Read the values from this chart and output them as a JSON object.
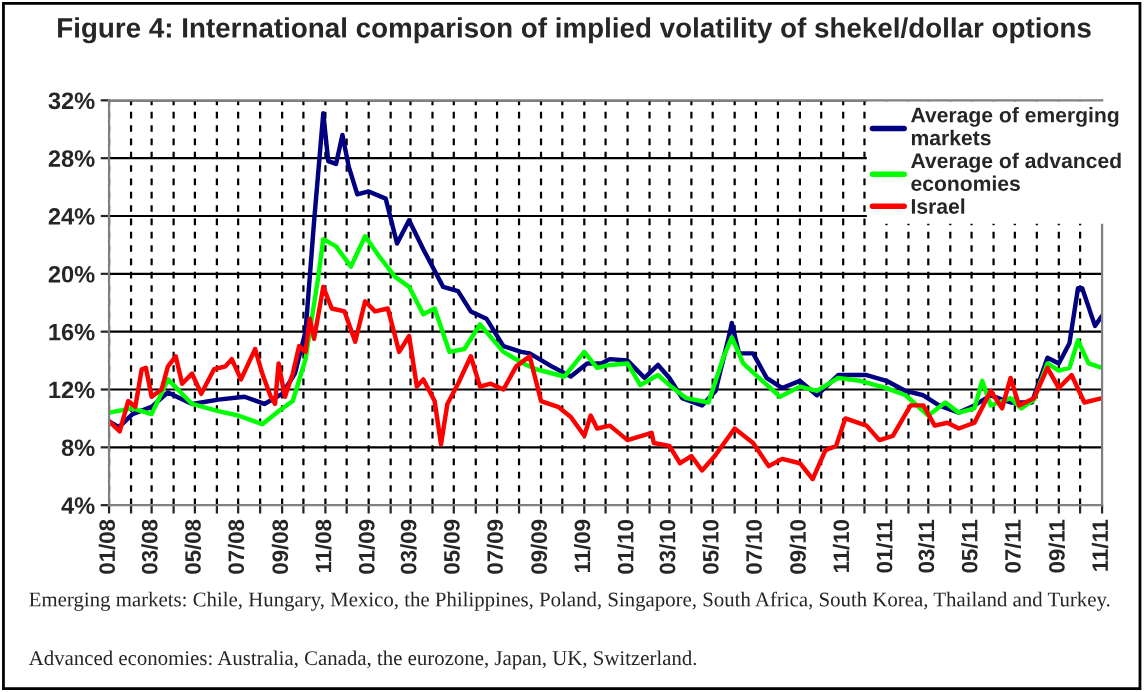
{
  "chart_data": {
    "type": "line",
    "title": "Figure 4: International comparison of implied volatility of shekel/dollar options",
    "ylim": [
      4,
      32
    ],
    "yticks": [
      {
        "value": 4,
        "label": "4%"
      },
      {
        "value": 8,
        "label": "8%"
      },
      {
        "value": 12,
        "label": "12%"
      },
      {
        "value": 16,
        "label": "16%"
      },
      {
        "value": 20,
        "label": "20%"
      },
      {
        "value": 24,
        "label": "24%"
      },
      {
        "value": 28,
        "label": "28%"
      },
      {
        "value": 32,
        "label": "32%"
      }
    ],
    "xlim": [
      "2008-01",
      "2011-11"
    ],
    "xticks": [
      {
        "value": "2008-01",
        "label": "01/08"
      },
      {
        "value": "2008-02",
        "label": null
      },
      {
        "value": "2008-03",
        "label": "03/08"
      },
      {
        "value": "2008-04",
        "label": null
      },
      {
        "value": "2008-05",
        "label": "05/08"
      },
      {
        "value": "2008-06",
        "label": null
      },
      {
        "value": "2008-07",
        "label": "07/08"
      },
      {
        "value": "2008-08",
        "label": null
      },
      {
        "value": "2008-09",
        "label": "09/08"
      },
      {
        "value": "2008-10",
        "label": null
      },
      {
        "value": "2008-11",
        "label": "11/08"
      },
      {
        "value": "2008-12",
        "label": null
      },
      {
        "value": "2009-01",
        "label": "01/09"
      },
      {
        "value": "2009-02",
        "label": null
      },
      {
        "value": "2009-03",
        "label": "03/09"
      },
      {
        "value": "2009-04",
        "label": null
      },
      {
        "value": "2009-05",
        "label": "05/09"
      },
      {
        "value": "2009-06",
        "label": null
      },
      {
        "value": "2009-07",
        "label": "07/09"
      },
      {
        "value": "2009-08",
        "label": null
      },
      {
        "value": "2009-09",
        "label": "09/09"
      },
      {
        "value": "2009-10",
        "label": null
      },
      {
        "value": "2009-11",
        "label": "11/09"
      },
      {
        "value": "2009-12",
        "label": null
      },
      {
        "value": "2010-01",
        "label": "01/10"
      },
      {
        "value": "2010-02",
        "label": null
      },
      {
        "value": "2010-03",
        "label": "03/10"
      },
      {
        "value": "2010-04",
        "label": null
      },
      {
        "value": "2010-05",
        "label": "05/10"
      },
      {
        "value": "2010-06",
        "label": null
      },
      {
        "value": "2010-07",
        "label": "07/10"
      },
      {
        "value": "2010-08",
        "label": null
      },
      {
        "value": "2010-09",
        "label": "09/10"
      },
      {
        "value": "2010-10",
        "label": null
      },
      {
        "value": "2010-11",
        "label": "11/10"
      },
      {
        "value": "2010-12",
        "label": null
      },
      {
        "value": "2011-01",
        "label": "01/11"
      },
      {
        "value": "2011-02",
        "label": null
      },
      {
        "value": "2011-03",
        "label": "03/11"
      },
      {
        "value": "2011-04",
        "label": null
      },
      {
        "value": "2011-05",
        "label": "05/11"
      },
      {
        "value": "2011-06",
        "label": null
      },
      {
        "value": "2011-07",
        "label": "07/11"
      },
      {
        "value": "2011-08",
        "label": null
      },
      {
        "value": "2011-09",
        "label": "09/11"
      },
      {
        "value": "2011-10",
        "label": null
      },
      {
        "value": "2011-11",
        "label": "11/11"
      }
    ],
    "grid": true,
    "legend": "top right",
    "marker": "none",
    "line_style": "solid",
    "series": [
      {
        "name": "Average of emerging markets",
        "color": "#000080",
        "x": [
          "2008-01-01",
          "2008-01-15",
          "2008-02-03",
          "2008-03-01",
          "2008-03-24",
          "2008-04-27",
          "2008-06-03",
          "2008-07-10",
          "2008-08-07",
          "2008-09-01",
          "2008-09-19",
          "2008-10-04",
          "2008-10-16",
          "2008-10-29",
          "2008-11-05",
          "2008-11-16",
          "2008-11-25",
          "2008-12-04",
          "2008-12-16",
          "2009-01-01",
          "2009-01-25",
          "2009-02-10",
          "2009-02-27",
          "2009-03-19",
          "2009-04-16",
          "2009-05-07",
          "2009-05-25",
          "2009-06-16",
          "2009-07-10",
          "2009-08-04",
          "2009-08-16",
          "2009-09-16",
          "2009-10-13",
          "2009-11-05",
          "2009-11-25",
          "2009-12-07",
          "2010-01-01",
          "2010-01-25",
          "2010-02-13",
          "2010-03-01",
          "2010-03-19",
          "2010-04-16",
          "2010-05-05",
          "2010-05-25",
          "2010-05-28",
          "2010-06-07",
          "2010-06-27",
          "2010-07-16",
          "2010-08-07",
          "2010-09-01",
          "2010-09-25",
          "2010-10-25",
          "2010-12-04",
          "2011-01-01",
          "2011-01-28",
          "2011-02-22",
          "2011-03-16",
          "2011-04-13",
          "2011-05-05",
          "2011-05-28",
          "2011-06-25",
          "2011-07-25",
          "2011-08-16",
          "2011-09-01",
          "2011-09-16",
          "2011-09-28",
          "2011-10-04",
          "2011-10-22",
          "2011-11-01"
        ],
        "values": [
          9.8,
          9.4,
          10.3,
          10.8,
          11.8,
          11,
          11.3,
          11.5,
          11,
          11.7,
          13.1,
          16,
          23.6,
          31.1,
          27.8,
          27.6,
          29.6,
          27.4,
          25.5,
          25.7,
          25.2,
          22.1,
          23.7,
          21.7,
          19.1,
          18.8,
          17.4,
          16.9,
          15,
          14.6,
          14.5,
          13.6,
          12.9,
          13.8,
          13.8,
          14.1,
          14,
          12.8,
          13.7,
          12.8,
          11.4,
          10.9,
          11.9,
          15.9,
          16.6,
          14.5,
          14.5,
          12.8,
          12.1,
          12.6,
          11.6,
          13,
          13,
          12.6,
          11.9,
          11.6,
          10.9,
          10.4,
          10.9,
          11.6,
          11.1,
          11.1,
          14.2,
          13.8,
          15.2,
          19,
          19,
          16.4,
          17.1
        ]
      },
      {
        "name": "Average of advanced economies",
        "color": "#00ff00",
        "x": [
          "2008-01-01",
          "2008-02-03",
          "2008-03-01",
          "2008-03-24",
          "2008-04-27",
          "2008-06-03",
          "2008-07-01",
          "2008-08-04",
          "2008-08-27",
          "2008-09-16",
          "2008-10-04",
          "2008-10-22",
          "2008-10-29",
          "2008-11-16",
          "2008-12-07",
          "2008-12-27",
          "2009-01-16",
          "2009-02-07",
          "2009-02-27",
          "2009-03-19",
          "2009-04-04",
          "2009-04-25",
          "2009-05-16",
          "2009-06-07",
          "2009-07-10",
          "2009-08-07",
          "2009-08-25",
          "2009-10-04",
          "2009-11-01",
          "2009-11-19",
          "2009-12-07",
          "2010-01-01",
          "2010-01-19",
          "2010-02-13",
          "2010-03-01",
          "2010-03-25",
          "2010-04-25",
          "2010-05-16",
          "2010-05-28",
          "2010-06-13",
          "2010-07-10",
          "2010-08-04",
          "2010-09-01",
          "2010-09-25",
          "2010-10-25",
          "2010-11-25",
          "2011-01-01",
          "2011-01-28",
          "2011-03-01",
          "2011-03-25",
          "2011-04-13",
          "2011-05-05",
          "2011-05-16",
          "2011-05-28",
          "2011-06-25",
          "2011-07-10",
          "2011-07-28",
          "2011-08-16",
          "2011-09-01",
          "2011-09-16",
          "2011-09-28",
          "2011-10-13",
          "2011-11-01"
        ],
        "values": [
          10.4,
          10.7,
          10.3,
          12.7,
          11,
          10.5,
          10.2,
          9.6,
          10.5,
          11.2,
          14.1,
          19.8,
          22.4,
          21.9,
          20.5,
          22.6,
          21.2,
          19.8,
          19.1,
          17.2,
          17.6,
          14.6,
          14.8,
          16.5,
          14.6,
          13.8,
          13.4,
          12.9,
          14.6,
          13.5,
          13.7,
          13.8,
          12.3,
          13,
          12.3,
          11.4,
          11.1,
          14.2,
          15.6,
          13.8,
          12.6,
          11.5,
          12.2,
          11.9,
          12.8,
          12.6,
          12.1,
          11.6,
          10.2,
          11.1,
          10.4,
          10.7,
          12.6,
          10.9,
          11.4,
          10.7,
          11.3,
          13.8,
          13.3,
          13.5,
          15.4,
          13.8,
          13.5
        ]
      },
      {
        "name": "Israel",
        "color": "#ff0000",
        "x": [
          "2008-01-01",
          "2008-01-16",
          "2008-01-28",
          "2008-02-07",
          "2008-02-16",
          "2008-02-22",
          "2008-03-01",
          "2008-03-15",
          "2008-03-24",
          "2008-04-04",
          "2008-04-13",
          "2008-04-27",
          "2008-05-10",
          "2008-05-28",
          "2008-06-13",
          "2008-06-22",
          "2008-07-05",
          "2008-07-25",
          "2008-08-04",
          "2008-08-16",
          "2008-08-22",
          "2008-08-27",
          "2008-09-05",
          "2008-09-16",
          "2008-09-25",
          "2008-10-04",
          "2008-10-10",
          "2008-10-16",
          "2008-10-29",
          "2008-11-10",
          "2008-11-28",
          "2008-12-13",
          "2008-12-27",
          "2009-01-10",
          "2009-01-28",
          "2009-02-13",
          "2009-02-27",
          "2009-03-10",
          "2009-03-19",
          "2009-04-04",
          "2009-04-13",
          "2009-04-22",
          "2009-05-07",
          "2009-05-25",
          "2009-06-07",
          "2009-06-22",
          "2009-07-10",
          "2009-07-28",
          "2009-08-16",
          "2009-09-01",
          "2009-09-25",
          "2009-10-13",
          "2009-11-01",
          "2009-11-10",
          "2009-11-19",
          "2009-12-07",
          "2010-01-01",
          "2010-02-04",
          "2010-02-07",
          "2010-03-01",
          "2010-03-16",
          "2010-04-01",
          "2010-04-16",
          "2010-05-04",
          "2010-06-01",
          "2010-06-27",
          "2010-07-19",
          "2010-08-07",
          "2010-09-01",
          "2010-09-19",
          "2010-10-07",
          "2010-10-22",
          "2010-11-04",
          "2010-12-04",
          "2010-12-22",
          "2011-01-10",
          "2011-02-04",
          "2011-02-22",
          "2011-03-10",
          "2011-03-28",
          "2011-04-13",
          "2011-05-05",
          "2011-05-28",
          "2011-06-13",
          "2011-06-25",
          "2011-07-07",
          "2011-07-28",
          "2011-08-16",
          "2011-09-01",
          "2011-09-19",
          "2011-10-07",
          "2011-11-01"
        ],
        "values": [
          9.8,
          9.1,
          11.2,
          10.8,
          13.4,
          13.5,
          11.5,
          12,
          13.6,
          14.3,
          12.4,
          13.1,
          11.7,
          13.4,
          13.6,
          14.1,
          12.7,
          14.8,
          13.1,
          11.5,
          11,
          13.8,
          11.5,
          13.1,
          15,
          14.6,
          16.9,
          15.5,
          19.1,
          17.6,
          17.4,
          15.3,
          18.1,
          17.4,
          17.6,
          14.6,
          15.7,
          12.2,
          12.7,
          11.2,
          8.2,
          11,
          12.4,
          14.3,
          12.2,
          12.4,
          12,
          13.6,
          14.3,
          11.2,
          10.8,
          10.1,
          8.8,
          10.2,
          9.3,
          9.5,
          8.5,
          9,
          8.3,
          8.1,
          6.9,
          7.4,
          6.4,
          7.4,
          9.3,
          8.3,
          6.7,
          7.2,
          6.9,
          5.8,
          7.8,
          8.1,
          10,
          9.5,
          8.5,
          8.8,
          10.9,
          10.9,
          9.5,
          9.7,
          9.3,
          9.7,
          11.9,
          10.7,
          12.8,
          10.9,
          11.4,
          13.5,
          12.1,
          13,
          11.1,
          11.4
        ]
      }
    ],
    "annotations": [
      "Emerging markets: Chile, Hungary, Mexico, the Philippines, Poland, Singapore, South Africa, South Korea, Thailand and Turkey.",
      "Advanced economies: Australia, Canada, the eurozone, Japan, UK, Switzerland."
    ]
  }
}
